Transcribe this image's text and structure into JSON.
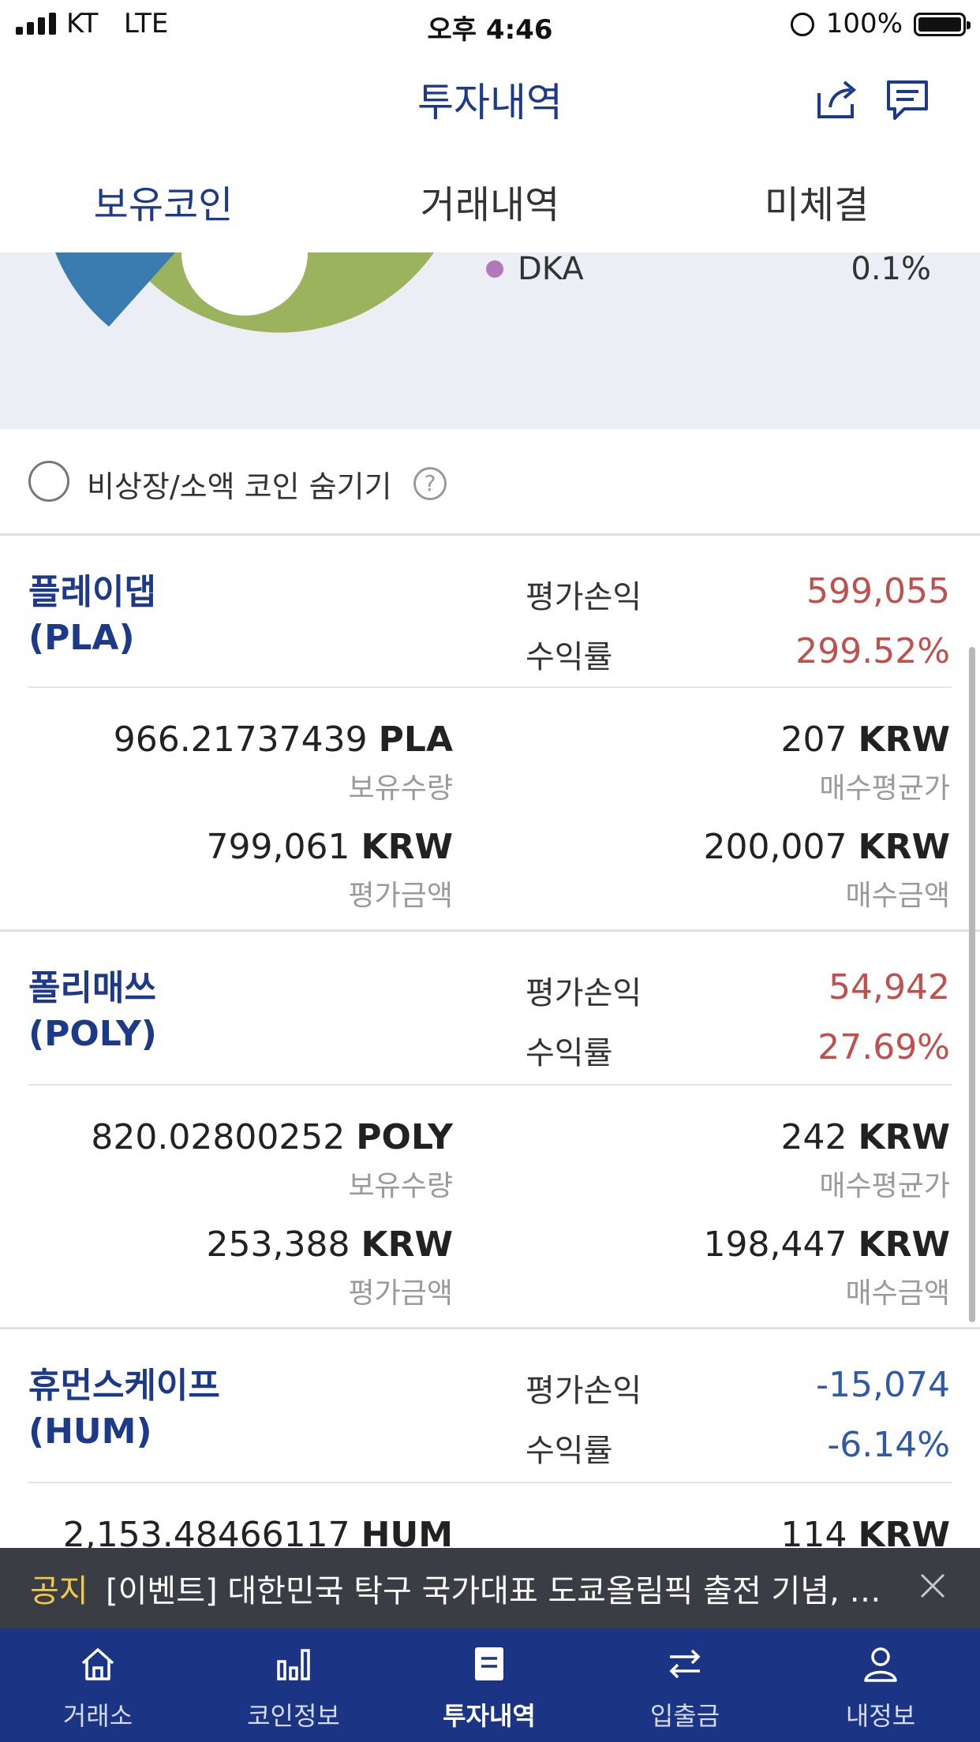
{
  "status": {
    "carrier": "KT   LTE",
    "time": "오후 4:46",
    "battery": "100%"
  },
  "header": {
    "title": "투자내역"
  },
  "tabs": [
    {
      "label": "보유코인"
    },
    {
      "label": "거래내역"
    },
    {
      "label": "미체결"
    }
  ],
  "chart_legend": {
    "name": "DKA",
    "value": "0.1%",
    "dot_color": "#b07ab8"
  },
  "chart_colors": {
    "green": "#9bb35c",
    "blue": "#3a7bb0"
  },
  "hide_toggle": {
    "label": "비상장/소액 코인 숨기기",
    "help": "?"
  },
  "labels": {
    "pl": "평가손익",
    "rate": "수익률",
    "qty": "보유수량",
    "avg": "매수평균가",
    "eval": "평가금액",
    "buy": "매수금액",
    "krw": "KRW"
  },
  "coins": [
    {
      "name": "플레이댑",
      "symbol": "(PLA)",
      "pl": "599,055",
      "rate": "299.52%",
      "qty": "966.21737439",
      "unit": "PLA",
      "avg": "207",
      "eval": "799,061",
      "buy": "200,007"
    },
    {
      "name": "폴리매쓰",
      "symbol": "(POLY)",
      "pl": "54,942",
      "rate": "27.69%",
      "qty": "820.02800252",
      "unit": "POLY",
      "avg": "242",
      "eval": "253,388",
      "buy": "198,447"
    },
    {
      "name": "휴먼스케이프",
      "symbol": "(HUM)",
      "pl": "-15,074",
      "rate": "-6.14%",
      "qty": "2,153.48466117",
      "unit": "HUM",
      "avg": "114"
    }
  ],
  "notice": {
    "tag": "공지",
    "text": "[이벤트] 대한민국 탁구 국가대표 도쿄올림픽 출전 기념, 업비트 이벤트"
  },
  "nav": [
    {
      "label": "거래소"
    },
    {
      "label": "코인정보"
    },
    {
      "label": "투자내역"
    },
    {
      "label": "입출금"
    },
    {
      "label": "내정보"
    }
  ]
}
